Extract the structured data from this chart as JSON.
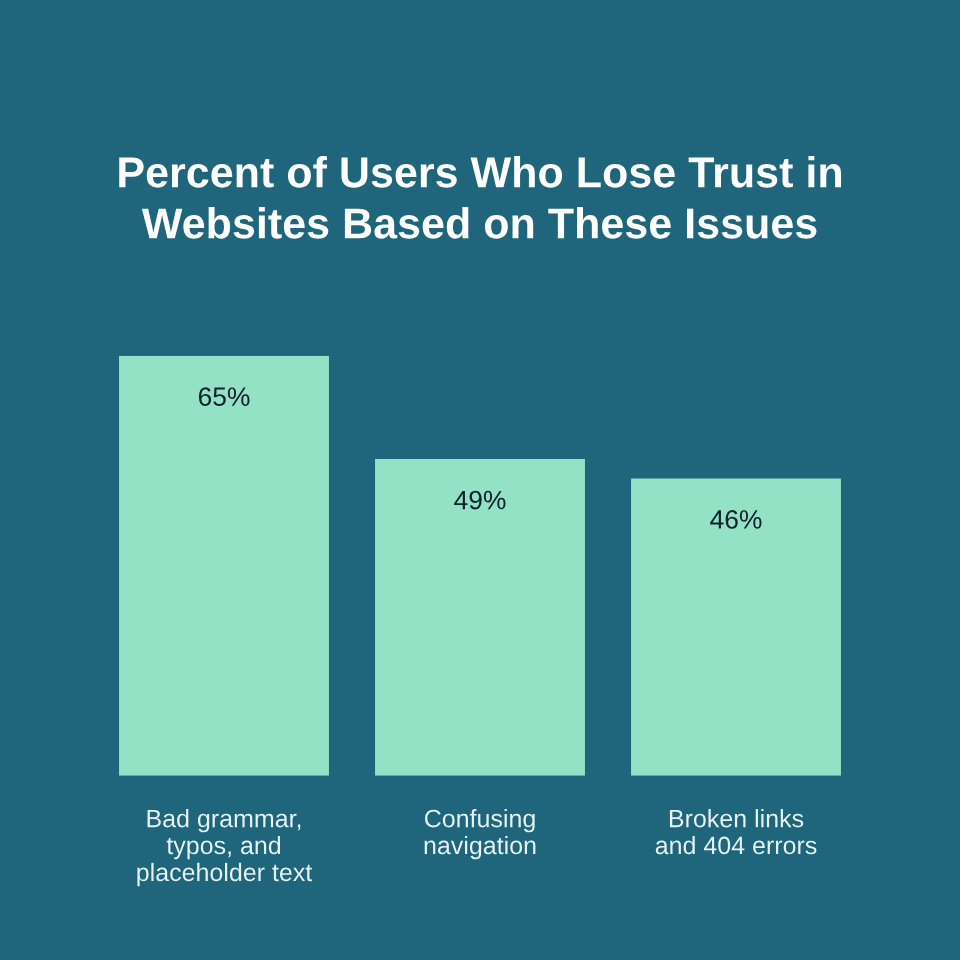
{
  "chart_data": {
    "type": "bar",
    "title": "Percent of Users Who Lose Trust in\nWebsites Based on These Issues",
    "categories": [
      "Bad grammar,\ntypos, and\nplaceholder text",
      "Confusing\nnavigation",
      "Broken links\nand 404 errors"
    ],
    "values": [
      65,
      49,
      46
    ],
    "value_labels": [
      "65%",
      "49%",
      "46%"
    ],
    "color": "#94e2c6"
  }
}
